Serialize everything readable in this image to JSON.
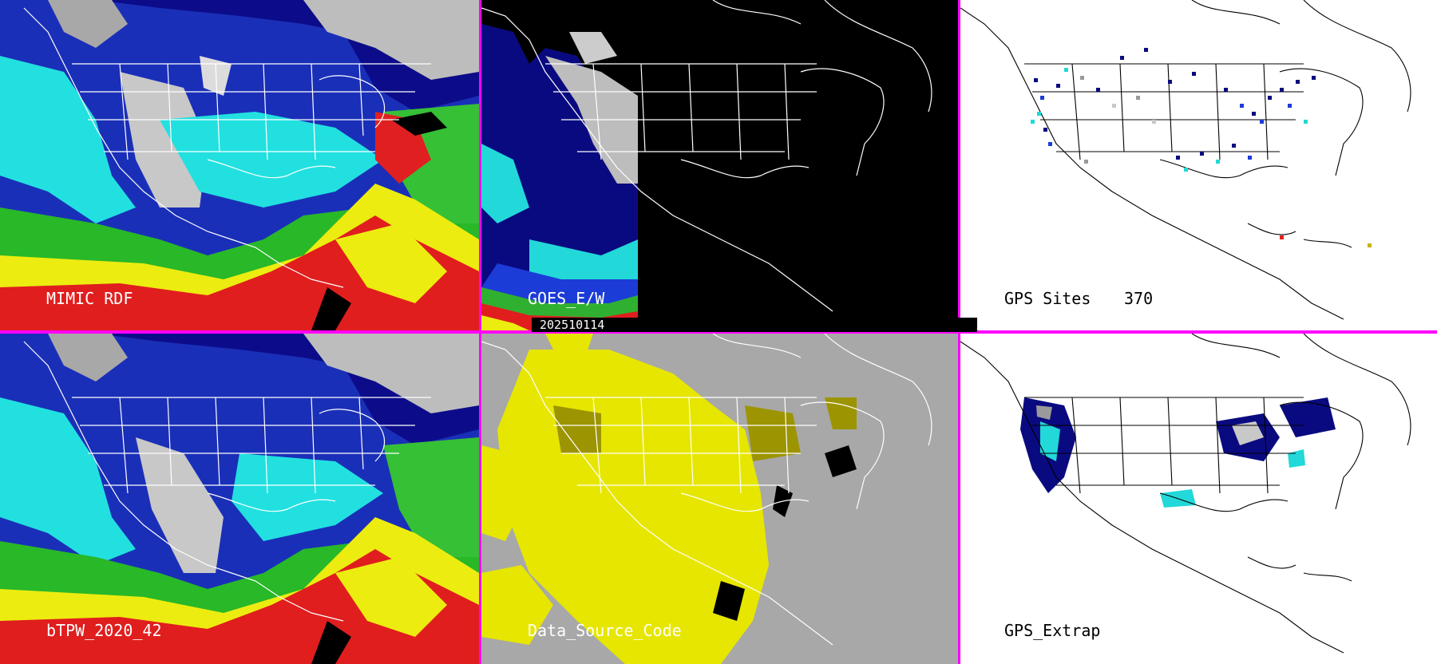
{
  "panels": {
    "mimic": {
      "label": "MIMIC RDF"
    },
    "goes": {
      "label": "GOES_E/W",
      "timestamp": "202510114"
    },
    "gps_sites": {
      "label": "GPS Sites",
      "count": "370"
    },
    "btpw": {
      "label": "bTPW_2020_42"
    },
    "data_source": {
      "label": "Data_Source_Code"
    },
    "gps_extrap": {
      "label": "GPS_Extrap"
    }
  },
  "colors": {
    "divider": "#ff00ff",
    "tpw_scale": [
      "#e6e6e6",
      "#9a9a9a",
      "#0a0a8c",
      "#1c3cd8",
      "#20e6e6",
      "#30c030",
      "#f0f000",
      "#e02020",
      "#b00000"
    ],
    "data_source_yellow": "#e6e600",
    "data_source_gray": "#a8a8a8",
    "data_source_olive": "#9c9400"
  },
  "icons": [
    "map-coastlines",
    "state-boundaries"
  ]
}
